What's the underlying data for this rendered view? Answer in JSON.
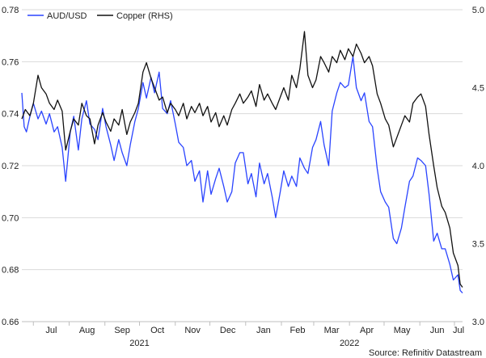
{
  "chart_data": {
    "type": "line",
    "legend": {
      "placement": "top-left",
      "entries": [
        {
          "label": "AUD/USD",
          "color": "#2a44ff"
        },
        {
          "label": "Copper (RHS)",
          "color": "#111111"
        }
      ]
    },
    "source": "Source: Refinitiv Datastream",
    "grid": "horizontal",
    "y_left": {
      "lim": [
        0.66,
        0.78
      ],
      "ticks": [
        "0.66",
        "0.68",
        "0.70",
        "0.72",
        "0.74",
        "0.76",
        "0.78"
      ]
    },
    "y_right": {
      "lim": [
        3.0,
        5.0
      ],
      "ticks": [
        "3.0",
        "3.5",
        "4.0",
        "4.5",
        "5.0"
      ]
    },
    "x": {
      "lim": [
        "2021-06-21",
        "2022-07-08"
      ],
      "month_ticks": [
        {
          "label": "Jul",
          "date": "2021-07-01"
        },
        {
          "label": "Aug",
          "date": "2021-08-01"
        },
        {
          "label": "Sep",
          "date": "2021-09-01"
        },
        {
          "label": "Oct",
          "date": "2021-10-01"
        },
        {
          "label": "Nov",
          "date": "2021-11-01"
        },
        {
          "label": "Dec",
          "date": "2021-12-01"
        },
        {
          "label": "Jan",
          "date": "2022-01-01"
        },
        {
          "label": "Feb",
          "date": "2022-02-01"
        },
        {
          "label": "Mar",
          "date": "2022-03-01"
        },
        {
          "label": "Apr",
          "date": "2022-04-01"
        },
        {
          "label": "May",
          "date": "2022-05-01"
        },
        {
          "label": "Jun",
          "date": "2022-06-01"
        },
        {
          "label": "Jul",
          "date": "2022-07-01"
        }
      ],
      "year_labels": [
        {
          "label": "2021",
          "date": "2021-10-01"
        },
        {
          "label": "2022",
          "date": "2022-04-01"
        }
      ]
    },
    "series": [
      {
        "name": "AUD/USD",
        "axis": "left",
        "color": "#2a44ff",
        "points": [
          [
            "2021-06-21",
            0.748
          ],
          [
            "2021-06-23",
            0.735
          ],
          [
            "2021-06-25",
            0.733
          ],
          [
            "2021-06-28",
            0.739
          ],
          [
            "2021-07-01",
            0.744
          ],
          [
            "2021-07-05",
            0.738
          ],
          [
            "2021-07-08",
            0.741
          ],
          [
            "2021-07-12",
            0.736
          ],
          [
            "2021-07-15",
            0.74
          ],
          [
            "2021-07-19",
            0.733
          ],
          [
            "2021-07-22",
            0.735
          ],
          [
            "2021-07-26",
            0.727
          ],
          [
            "2021-07-29",
            0.714
          ],
          [
            "2021-08-02",
            0.733
          ],
          [
            "2021-08-05",
            0.739
          ],
          [
            "2021-08-09",
            0.726
          ],
          [
            "2021-08-12",
            0.738
          ],
          [
            "2021-08-16",
            0.745
          ],
          [
            "2021-08-19",
            0.736
          ],
          [
            "2021-08-23",
            0.734
          ],
          [
            "2021-08-26",
            0.73
          ],
          [
            "2021-08-30",
            0.742
          ],
          [
            "2021-09-02",
            0.735
          ],
          [
            "2021-09-06",
            0.728
          ],
          [
            "2021-09-09",
            0.722
          ],
          [
            "2021-09-13",
            0.73
          ],
          [
            "2021-09-16",
            0.725
          ],
          [
            "2021-09-20",
            0.72
          ],
          [
            "2021-09-23",
            0.728
          ],
          [
            "2021-09-27",
            0.737
          ],
          [
            "2021-09-30",
            0.742
          ],
          [
            "2021-10-04",
            0.752
          ],
          [
            "2021-10-07",
            0.746
          ],
          [
            "2021-10-11",
            0.754
          ],
          [
            "2021-10-14",
            0.748
          ],
          [
            "2021-10-18",
            0.756
          ],
          [
            "2021-10-21",
            0.742
          ],
          [
            "2021-10-25",
            0.74
          ],
          [
            "2021-10-28",
            0.745
          ],
          [
            "2021-11-01",
            0.736
          ],
          [
            "2021-11-04",
            0.729
          ],
          [
            "2021-11-08",
            0.727
          ],
          [
            "2021-11-11",
            0.72
          ],
          [
            "2021-11-15",
            0.722
          ],
          [
            "2021-11-18",
            0.714
          ],
          [
            "2021-11-22",
            0.718
          ],
          [
            "2021-11-25",
            0.706
          ],
          [
            "2021-11-29",
            0.718
          ],
          [
            "2021-12-02",
            0.709
          ],
          [
            "2021-12-06",
            0.715
          ],
          [
            "2021-12-09",
            0.719
          ],
          [
            "2021-12-13",
            0.712
          ],
          [
            "2021-12-16",
            0.706
          ],
          [
            "2021-12-20",
            0.71
          ],
          [
            "2021-12-23",
            0.721
          ],
          [
            "2021-12-27",
            0.725
          ],
          [
            "2021-12-30",
            0.725
          ],
          [
            "2022-01-03",
            0.713
          ],
          [
            "2022-01-06",
            0.717
          ],
          [
            "2022-01-10",
            0.708
          ],
          [
            "2022-01-13",
            0.721
          ],
          [
            "2022-01-17",
            0.713
          ],
          [
            "2022-01-20",
            0.717
          ],
          [
            "2022-01-24",
            0.708
          ],
          [
            "2022-01-27",
            0.7
          ],
          [
            "2022-01-31",
            0.71
          ],
          [
            "2022-02-03",
            0.718
          ],
          [
            "2022-02-07",
            0.712
          ],
          [
            "2022-02-10",
            0.716
          ],
          [
            "2022-02-14",
            0.712
          ],
          [
            "2022-02-17",
            0.723
          ],
          [
            "2022-02-21",
            0.719
          ],
          [
            "2022-02-24",
            0.717
          ],
          [
            "2022-02-28",
            0.727
          ],
          [
            "2022-03-03",
            0.73
          ],
          [
            "2022-03-07",
            0.737
          ],
          [
            "2022-03-10",
            0.728
          ],
          [
            "2022-03-14",
            0.72
          ],
          [
            "2022-03-17",
            0.741
          ],
          [
            "2022-03-21",
            0.748
          ],
          [
            "2022-03-24",
            0.752
          ],
          [
            "2022-03-28",
            0.75
          ],
          [
            "2022-03-31",
            0.751
          ],
          [
            "2022-04-04",
            0.762
          ],
          [
            "2022-04-07",
            0.75
          ],
          [
            "2022-04-11",
            0.745
          ],
          [
            "2022-04-14",
            0.748
          ],
          [
            "2022-04-18",
            0.737
          ],
          [
            "2022-04-21",
            0.735
          ],
          [
            "2022-04-25",
            0.719
          ],
          [
            "2022-04-28",
            0.71
          ],
          [
            "2022-05-02",
            0.706
          ],
          [
            "2022-05-05",
            0.704
          ],
          [
            "2022-05-09",
            0.692
          ],
          [
            "2022-05-12",
            0.69
          ],
          [
            "2022-05-16",
            0.696
          ],
          [
            "2022-05-19",
            0.704
          ],
          [
            "2022-05-23",
            0.714
          ],
          [
            "2022-05-26",
            0.716
          ],
          [
            "2022-05-30",
            0.723
          ],
          [
            "2022-06-02",
            0.722
          ],
          [
            "2022-06-06",
            0.72
          ],
          [
            "2022-06-09",
            0.709
          ],
          [
            "2022-06-13",
            0.691
          ],
          [
            "2022-06-16",
            0.694
          ],
          [
            "2022-06-20",
            0.688
          ],
          [
            "2022-06-23",
            0.688
          ],
          [
            "2022-06-27",
            0.682
          ],
          [
            "2022-06-30",
            0.676
          ],
          [
            "2022-07-04",
            0.678
          ],
          [
            "2022-07-06",
            0.672
          ],
          [
            "2022-07-08",
            0.671
          ]
        ]
      },
      {
        "name": "Copper (RHS)",
        "axis": "right",
        "color": "#111111",
        "points": [
          [
            "2021-06-21",
            4.3
          ],
          [
            "2021-06-24",
            4.36
          ],
          [
            "2021-06-28",
            4.32
          ],
          [
            "2021-07-01",
            4.4
          ],
          [
            "2021-07-05",
            4.58
          ],
          [
            "2021-07-08",
            4.5
          ],
          [
            "2021-07-12",
            4.46
          ],
          [
            "2021-07-15",
            4.4
          ],
          [
            "2021-07-19",
            4.36
          ],
          [
            "2021-07-22",
            4.42
          ],
          [
            "2021-07-26",
            4.35
          ],
          [
            "2021-07-29",
            4.1
          ],
          [
            "2021-08-02",
            4.22
          ],
          [
            "2021-08-05",
            4.3
          ],
          [
            "2021-08-09",
            4.26
          ],
          [
            "2021-08-12",
            4.4
          ],
          [
            "2021-08-16",
            4.32
          ],
          [
            "2021-08-19",
            4.3
          ],
          [
            "2021-08-23",
            4.14
          ],
          [
            "2021-08-26",
            4.26
          ],
          [
            "2021-08-30",
            4.34
          ],
          [
            "2021-09-02",
            4.28
          ],
          [
            "2021-09-06",
            4.22
          ],
          [
            "2021-09-09",
            4.3
          ],
          [
            "2021-09-13",
            4.26
          ],
          [
            "2021-09-16",
            4.36
          ],
          [
            "2021-09-20",
            4.2
          ],
          [
            "2021-09-23",
            4.28
          ],
          [
            "2021-09-27",
            4.34
          ],
          [
            "2021-09-30",
            4.4
          ],
          [
            "2021-10-04",
            4.6
          ],
          [
            "2021-10-07",
            4.66
          ],
          [
            "2021-10-11",
            4.56
          ],
          [
            "2021-10-14",
            4.5
          ],
          [
            "2021-10-18",
            4.42
          ],
          [
            "2021-10-21",
            4.44
          ],
          [
            "2021-10-25",
            4.34
          ],
          [
            "2021-10-28",
            4.4
          ],
          [
            "2021-11-01",
            4.36
          ],
          [
            "2021-11-04",
            4.32
          ],
          [
            "2021-11-08",
            4.4
          ],
          [
            "2021-11-11",
            4.3
          ],
          [
            "2021-11-15",
            4.38
          ],
          [
            "2021-11-18",
            4.34
          ],
          [
            "2021-11-22",
            4.4
          ],
          [
            "2021-11-25",
            4.32
          ],
          [
            "2021-11-29",
            4.38
          ],
          [
            "2021-12-02",
            4.28
          ],
          [
            "2021-12-06",
            4.34
          ],
          [
            "2021-12-09",
            4.25
          ],
          [
            "2021-12-13",
            4.32
          ],
          [
            "2021-12-16",
            4.26
          ],
          [
            "2021-12-20",
            4.36
          ],
          [
            "2021-12-23",
            4.4
          ],
          [
            "2021-12-27",
            4.46
          ],
          [
            "2021-12-30",
            4.4
          ],
          [
            "2022-01-03",
            4.44
          ],
          [
            "2022-01-06",
            4.48
          ],
          [
            "2022-01-10",
            4.38
          ],
          [
            "2022-01-13",
            4.52
          ],
          [
            "2022-01-17",
            4.42
          ],
          [
            "2022-01-20",
            4.46
          ],
          [
            "2022-01-24",
            4.4
          ],
          [
            "2022-01-27",
            4.36
          ],
          [
            "2022-01-31",
            4.44
          ],
          [
            "2022-02-03",
            4.5
          ],
          [
            "2022-02-07",
            4.42
          ],
          [
            "2022-02-10",
            4.58
          ],
          [
            "2022-02-14",
            4.5
          ],
          [
            "2022-02-17",
            4.62
          ],
          [
            "2022-02-21",
            4.86
          ],
          [
            "2022-02-24",
            4.58
          ],
          [
            "2022-02-28",
            4.5
          ],
          [
            "2022-03-03",
            4.55
          ],
          [
            "2022-03-07",
            4.7
          ],
          [
            "2022-03-10",
            4.66
          ],
          [
            "2022-03-14",
            4.6
          ],
          [
            "2022-03-17",
            4.7
          ],
          [
            "2022-03-21",
            4.66
          ],
          [
            "2022-03-24",
            4.74
          ],
          [
            "2022-03-28",
            4.68
          ],
          [
            "2022-03-31",
            4.75
          ],
          [
            "2022-04-04",
            4.7
          ],
          [
            "2022-04-07",
            4.78
          ],
          [
            "2022-04-11",
            4.72
          ],
          [
            "2022-04-14",
            4.66
          ],
          [
            "2022-04-18",
            4.7
          ],
          [
            "2022-04-21",
            4.64
          ],
          [
            "2022-04-25",
            4.46
          ],
          [
            "2022-04-28",
            4.4
          ],
          [
            "2022-05-02",
            4.3
          ],
          [
            "2022-05-05",
            4.26
          ],
          [
            "2022-05-09",
            4.12
          ],
          [
            "2022-05-12",
            4.18
          ],
          [
            "2022-05-16",
            4.26
          ],
          [
            "2022-05-19",
            4.32
          ],
          [
            "2022-05-23",
            4.28
          ],
          [
            "2022-05-26",
            4.4
          ],
          [
            "2022-05-30",
            4.44
          ],
          [
            "2022-06-02",
            4.46
          ],
          [
            "2022-06-06",
            4.38
          ],
          [
            "2022-06-09",
            4.2
          ],
          [
            "2022-06-13",
            4.0
          ],
          [
            "2022-06-16",
            3.86
          ],
          [
            "2022-06-20",
            3.74
          ],
          [
            "2022-06-23",
            3.7
          ],
          [
            "2022-06-27",
            3.6
          ],
          [
            "2022-06-30",
            3.44
          ],
          [
            "2022-07-04",
            3.36
          ],
          [
            "2022-07-06",
            3.24
          ],
          [
            "2022-07-08",
            3.22
          ]
        ]
      }
    ]
  }
}
